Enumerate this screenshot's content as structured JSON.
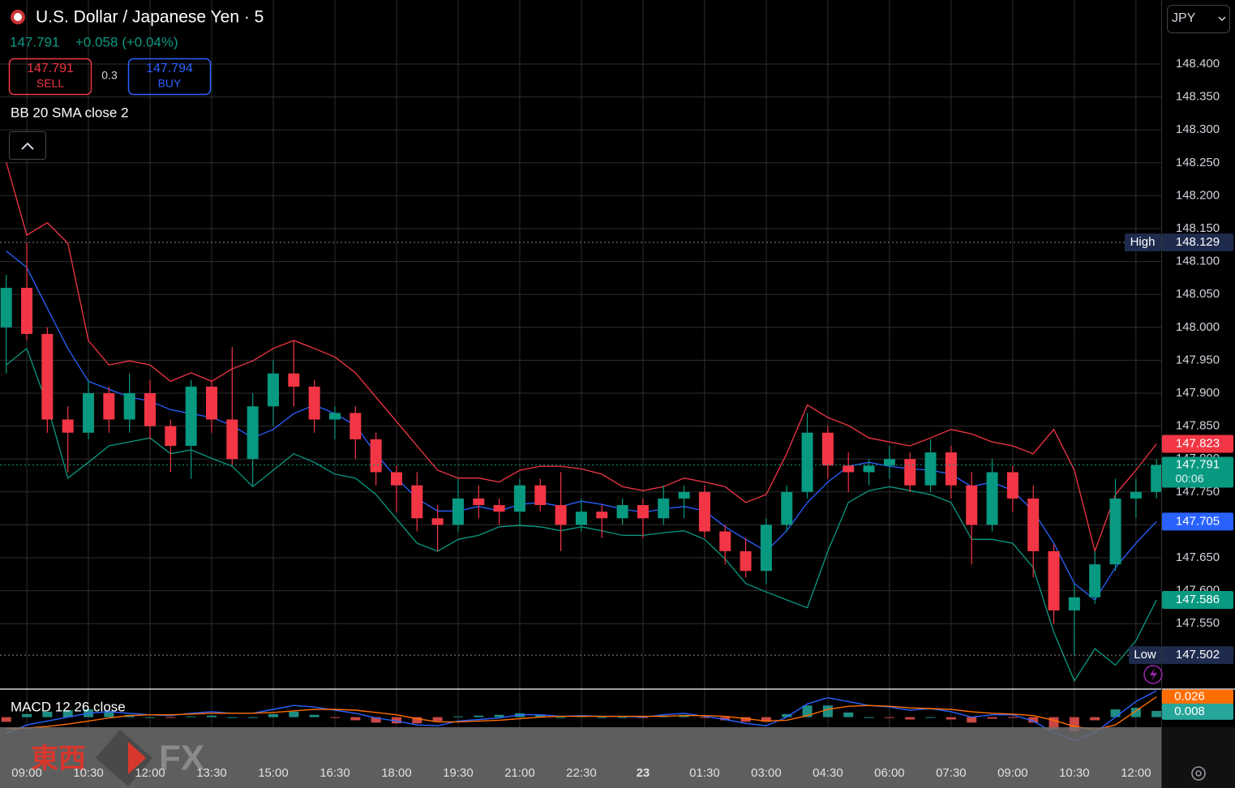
{
  "header": {
    "title": "U.S. Dollar / Japanese Yen · 5",
    "change": "+0.058 (+0.04%)",
    "sell": {
      "price": "147.791",
      "label": "SELL"
    },
    "spread": "0.3",
    "buy": {
      "price": "147.794",
      "label": "BUY"
    },
    "indicator": "BB 20 SMA close 2",
    "currency": "JPY"
  },
  "watermark": {
    "cjk": "東西",
    "latin": "FX"
  },
  "chart_data": [
    {
      "type": "candlestick",
      "categories": [
        null,
        "09:00",
        null,
        null,
        "10:30",
        null,
        null,
        "12:00",
        null,
        null,
        "13:30",
        null,
        null,
        "15:00",
        null,
        null,
        "16:30",
        null,
        null,
        "18:00",
        null,
        null,
        "19:30",
        null,
        null,
        "21:00",
        null,
        null,
        "22:30",
        null,
        null,
        "23",
        null,
        null,
        "01:30",
        null,
        null,
        "03:00",
        null,
        null,
        "04:30",
        null,
        null,
        "06:00",
        null,
        null,
        "07:30",
        null,
        null,
        "09:00",
        null,
        null,
        "10:30",
        null,
        null,
        "12:00",
        null
      ],
      "open": [
        148.0,
        148.06,
        147.99,
        147.86,
        147.84,
        147.9,
        147.86,
        147.9,
        147.85,
        147.82,
        147.91,
        147.86,
        147.8,
        147.88,
        147.93,
        147.91,
        147.86,
        147.87,
        147.83,
        147.78,
        147.76,
        147.71,
        147.7,
        147.74,
        147.73,
        147.72,
        147.76,
        147.73,
        147.7,
        147.72,
        147.71,
        147.73,
        147.71,
        147.74,
        147.75,
        147.69,
        147.66,
        147.63,
        147.7,
        147.75,
        147.84,
        147.79,
        147.78,
        147.79,
        147.8,
        147.76,
        147.81,
        147.76,
        147.7,
        147.78,
        147.74,
        147.66,
        147.57,
        147.59,
        147.64,
        147.74,
        147.75
      ],
      "high": [
        148.08,
        148.129,
        148.0,
        147.88,
        147.92,
        147.91,
        147.93,
        147.92,
        147.86,
        147.92,
        147.92,
        147.97,
        147.9,
        147.95,
        147.98,
        147.92,
        147.88,
        147.88,
        147.84,
        147.79,
        147.78,
        147.73,
        147.77,
        147.76,
        147.74,
        147.77,
        147.77,
        147.78,
        147.74,
        147.73,
        147.74,
        147.74,
        147.76,
        147.76,
        147.76,
        147.7,
        147.68,
        147.71,
        147.76,
        147.87,
        147.85,
        147.81,
        147.8,
        147.82,
        147.81,
        147.83,
        147.82,
        147.78,
        147.8,
        147.79,
        147.76,
        147.67,
        147.61,
        147.66,
        147.77,
        147.77,
        147.8
      ],
      "low": [
        147.93,
        147.98,
        147.84,
        147.78,
        147.83,
        147.84,
        147.84,
        147.83,
        147.78,
        147.77,
        147.84,
        147.79,
        147.76,
        147.85,
        147.88,
        147.84,
        147.83,
        147.8,
        147.76,
        147.72,
        147.69,
        147.66,
        147.69,
        147.71,
        147.7,
        147.7,
        147.72,
        147.66,
        147.69,
        147.68,
        147.7,
        147.68,
        147.7,
        147.71,
        147.68,
        147.64,
        147.62,
        147.61,
        147.69,
        147.74,
        147.77,
        147.75,
        147.76,
        147.77,
        147.75,
        147.75,
        147.74,
        147.64,
        147.69,
        147.72,
        147.62,
        147.55,
        147.502,
        147.58,
        147.63,
        147.71,
        147.74
      ],
      "close": [
        148.06,
        147.99,
        147.86,
        147.84,
        147.9,
        147.86,
        147.9,
        147.85,
        147.82,
        147.91,
        147.86,
        147.8,
        147.88,
        147.93,
        147.91,
        147.86,
        147.87,
        147.83,
        147.78,
        147.76,
        147.71,
        147.7,
        147.74,
        147.73,
        147.72,
        147.76,
        147.73,
        147.7,
        147.72,
        147.71,
        147.73,
        147.71,
        147.74,
        147.75,
        147.69,
        147.66,
        147.63,
        147.7,
        147.75,
        147.84,
        147.79,
        147.78,
        147.79,
        147.8,
        147.76,
        147.81,
        147.76,
        147.7,
        147.78,
        147.74,
        147.66,
        147.57,
        147.59,
        147.64,
        147.74,
        147.75,
        147.791
      ],
      "up_color": "#089981",
      "down_color": "#f23645",
      "bands": {
        "upper": {
          "color": "#f23645",
          "values": [
            148.251,
            148.14,
            148.159,
            148.128,
            147.98,
            147.943,
            147.949,
            147.943,
            147.918,
            147.931,
            147.918,
            147.937,
            147.949,
            147.968,
            147.98,
            147.968,
            147.955,
            147.931,
            147.894,
            147.857,
            147.82,
            147.783,
            147.771,
            147.771,
            147.765,
            147.783,
            147.789,
            147.789,
            147.785,
            147.777,
            147.758,
            147.752,
            147.758,
            147.771,
            147.765,
            147.758,
            147.734,
            147.746,
            147.808,
            147.882,
            147.863,
            147.851,
            147.832,
            147.826,
            147.82,
            147.832,
            147.845,
            147.838,
            147.826,
            147.82,
            147.808,
            147.845,
            147.783,
            147.66,
            147.746,
            147.783,
            147.823
          ]
        },
        "basis": {
          "color": "#2962ff",
          "values": [
            148.116,
            148.091,
            148.029,
            147.968,
            147.918,
            147.906,
            147.894,
            147.888,
            147.875,
            147.869,
            147.863,
            147.851,
            147.832,
            147.845,
            147.869,
            147.882,
            147.869,
            147.851,
            147.808,
            147.771,
            147.74,
            147.721,
            147.721,
            147.728,
            147.721,
            147.731,
            147.734,
            147.728,
            147.736,
            147.731,
            147.724,
            147.719,
            147.724,
            147.728,
            147.721,
            147.697,
            147.678,
            147.66,
            147.691,
            147.734,
            147.765,
            147.789,
            147.795,
            147.789,
            147.785,
            147.783,
            147.777,
            147.758,
            147.765,
            147.752,
            147.721,
            147.672,
            147.611,
            147.586,
            147.635,
            147.672,
            147.705
          ]
        },
        "lower": {
          "color": "#089981",
          "values": [
            147.943,
            147.968,
            147.882,
            147.771,
            147.795,
            147.82,
            147.826,
            147.832,
            147.808,
            147.814,
            147.801,
            147.789,
            147.758,
            147.783,
            147.808,
            147.795,
            147.777,
            147.771,
            147.746,
            147.709,
            147.672,
            147.66,
            147.678,
            147.684,
            147.697,
            147.699,
            147.697,
            147.691,
            147.697,
            147.691,
            147.684,
            147.684,
            147.688,
            147.691,
            147.678,
            147.648,
            147.611,
            147.598,
            147.586,
            147.574,
            147.66,
            147.734,
            147.752,
            147.758,
            147.752,
            147.746,
            147.734,
            147.678,
            147.678,
            147.672,
            147.635,
            147.537,
            147.463,
            147.512,
            147.487,
            147.524,
            147.586
          ]
        }
      },
      "high_label": "High",
      "low_label": "Low",
      "countdown": "00:06",
      "ylim": [
        147.45,
        148.5
      ],
      "yticks": [
        {
          "value": 147.55,
          "label": "147.550"
        },
        {
          "value": 147.6,
          "label": "147.600"
        },
        {
          "value": 147.65,
          "label": "147.650"
        },
        {
          "value": 147.7,
          "label": "147.700"
        },
        {
          "value": 147.75,
          "label": "147.750"
        },
        {
          "value": 147.8,
          "label": "147.800"
        },
        {
          "value": 147.85,
          "label": "147.850"
        },
        {
          "value": 147.9,
          "label": "147.900"
        },
        {
          "value": 147.95,
          "label": "147.950"
        },
        {
          "value": 148.0,
          "label": "148.000"
        },
        {
          "value": 148.05,
          "label": "148.050"
        },
        {
          "value": 148.1,
          "label": "148.100"
        },
        {
          "value": 148.15,
          "label": "148.150"
        },
        {
          "value": 148.2,
          "label": "148.200"
        },
        {
          "value": 148.25,
          "label": "148.250"
        },
        {
          "value": 148.3,
          "label": "148.300"
        },
        {
          "value": 148.35,
          "label": "148.350"
        },
        {
          "value": 148.4,
          "label": "148.400"
        }
      ],
      "grid": true
    },
    {
      "type": "macd",
      "title": "MACD 12 26 close",
      "macd": {
        "color": "#2962ff",
        "values": [
          -0.021,
          -0.01,
          -0.005,
          0.0,
          0.005,
          0.007,
          0.005,
          0.003,
          0.002,
          0.005,
          0.007,
          0.005,
          0.005,
          0.01,
          0.015,
          0.013,
          0.009,
          0.005,
          -0.001,
          -0.005,
          -0.01,
          -0.011,
          -0.005,
          -0.003,
          -0.001,
          0.003,
          0.003,
          0.001,
          0.002,
          0.001,
          0.001,
          0.0,
          0.003,
          0.005,
          0.001,
          -0.003,
          -0.008,
          -0.011,
          0.0,
          0.017,
          0.025,
          0.02,
          0.015,
          0.013,
          0.009,
          0.011,
          0.007,
          0.0,
          0.003,
          0.003,
          -0.005,
          -0.02,
          -0.03,
          -0.02,
          0.0,
          0.02,
          0.034
        ]
      },
      "signal": {
        "color": "#ff6d00",
        "values": [
          -0.015,
          -0.014,
          -0.012,
          -0.009,
          -0.005,
          -0.001,
          0.002,
          0.003,
          0.003,
          0.004,
          0.005,
          0.005,
          0.005,
          0.006,
          0.008,
          0.01,
          0.01,
          0.009,
          0.006,
          0.003,
          -0.002,
          -0.006,
          -0.006,
          -0.005,
          -0.004,
          -0.002,
          0.0,
          0.001,
          0.001,
          0.001,
          0.001,
          0.001,
          0.001,
          0.002,
          0.002,
          0.001,
          -0.002,
          -0.005,
          -0.004,
          0.002,
          0.01,
          0.014,
          0.015,
          0.014,
          0.012,
          0.011,
          0.01,
          0.007,
          0.005,
          0.004,
          0.002,
          -0.004,
          -0.012,
          -0.016,
          -0.01,
          0.008,
          0.026
        ]
      },
      "histogram": {
        "up_color": "#26a69a",
        "down_color": "#ef5350",
        "values": [
          -0.006,
          0.004,
          0.007,
          0.009,
          0.01,
          0.008,
          0.003,
          0,
          -0.001,
          0.001,
          0.002,
          0,
          0,
          0.004,
          0.007,
          0.003,
          -0.001,
          -0.004,
          -0.007,
          -0.008,
          -0.008,
          -0.005,
          0.001,
          0.002,
          0.003,
          0.005,
          0.003,
          0,
          0.001,
          0,
          0,
          -0.001,
          0.002,
          0.003,
          -0.001,
          -0.004,
          -0.006,
          -0.006,
          0.004,
          0.015,
          0.015,
          0.006,
          0,
          -0.001,
          -0.003,
          0,
          -0.003,
          -0.007,
          -0.002,
          -0.001,
          -0.007,
          -0.016,
          -0.018,
          -0.004,
          0.01,
          0.012,
          0.008
        ]
      },
      "ylim": [
        -0.04,
        0.035
      ]
    }
  ]
}
